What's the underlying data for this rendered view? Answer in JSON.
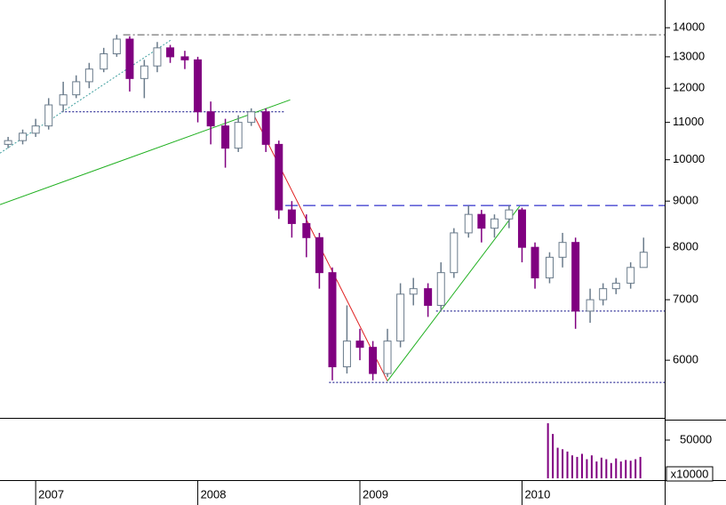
{
  "chart_data": [
    {
      "type": "candlestick",
      "log_scale": true,
      "xlim": [
        2006.78,
        2010.88
      ],
      "xticks": [
        2007,
        2008,
        2009,
        2010
      ],
      "ylim": [
        5180,
        15025
      ],
      "yticks": [
        6000,
        7000,
        8000,
        9000,
        10000,
        11000,
        12000,
        13000,
        14000
      ],
      "up_color": "#6a7b8b",
      "down_color": "#800080",
      "x": [
        2006.83,
        2006.92,
        2007.0,
        2007.08,
        2007.17,
        2007.25,
        2007.33,
        2007.42,
        2007.5,
        2007.58,
        2007.67,
        2007.75,
        2007.83,
        2007.92,
        2008.0,
        2008.08,
        2008.17,
        2008.25,
        2008.33,
        2008.42,
        2008.5,
        2008.58,
        2008.67,
        2008.75,
        2008.83,
        2008.92,
        2009.0,
        2009.08,
        2009.17,
        2009.25,
        2009.33,
        2009.42,
        2009.5,
        2009.58,
        2009.67,
        2009.75,
        2009.83,
        2009.92,
        2010.0,
        2010.08,
        2010.17,
        2010.25,
        2010.33,
        2010.42,
        2010.5,
        2010.58,
        2010.67,
        2010.75
      ],
      "open": [
        10400,
        10500,
        10700,
        10900,
        11500,
        11800,
        12200,
        12600,
        13100,
        13600,
        12300,
        12700,
        13300,
        13000,
        12900,
        11300,
        10900,
        10300,
        11000,
        11300,
        10400,
        8800,
        8500,
        8200,
        7500,
        5900,
        6300,
        6200,
        5800,
        6300,
        7100,
        7200,
        6900,
        7500,
        8300,
        8700,
        8400,
        8600,
        8800,
        8000,
        7400,
        7800,
        8100,
        6800,
        7000,
        7200,
        7300,
        7600
      ],
      "high": [
        10600,
        10800,
        11100,
        11700,
        12200,
        12400,
        12800,
        13300,
        13750,
        13700,
        12900,
        13500,
        13400,
        13200,
        13000,
        11600,
        11100,
        11200,
        11400,
        11400,
        10500,
        9000,
        8700,
        8300,
        7600,
        6900,
        6500,
        6300,
        6500,
        7300,
        7400,
        7300,
        7700,
        8400,
        8900,
        8800,
        8700,
        8900,
        8850,
        8100,
        7900,
        8300,
        8200,
        7200,
        7300,
        7400,
        7700,
        8200
      ],
      "low": [
        10300,
        10400,
        10600,
        10800,
        11300,
        11700,
        12000,
        12500,
        13000,
        11900,
        11700,
        12500,
        12800,
        12600,
        11000,
        10400,
        9800,
        10200,
        10900,
        10200,
        8600,
        8200,
        7800,
        7200,
        5700,
        5800,
        6000,
        5700,
        5750,
        6200,
        6900,
        6700,
        6800,
        7400,
        8200,
        8100,
        8200,
        8400,
        7700,
        7200,
        7300,
        7600,
        6500,
        6600,
        6900,
        7100,
        7200,
        7600
      ],
      "close": [
        10500,
        10700,
        10900,
        11500,
        11800,
        12200,
        12600,
        13100,
        13600,
        12300,
        12700,
        13300,
        13000,
        12900,
        11300,
        10900,
        10300,
        11000,
        11300,
        10400,
        8800,
        8500,
        8200,
        7500,
        5900,
        6300,
        6200,
        5800,
        6300,
        7100,
        7200,
        6900,
        7500,
        8300,
        8700,
        8400,
        8600,
        8800,
        8000,
        7400,
        7800,
        8100,
        6800,
        7000,
        7200,
        7300,
        7600,
        7900
      ],
      "lines": [
        {
          "x": [
            2007.54,
            2010.88
          ],
          "y": [
            13750,
            13750
          ],
          "color": "#555555",
          "style": "dashdot"
        },
        {
          "x": [
            2007.16,
            2008.54
          ],
          "y": [
            11300,
            11300
          ],
          "color": "#000080",
          "style": "dotted"
        },
        {
          "x": [
            2008.54,
            2010.88
          ],
          "y": [
            8900,
            8900
          ],
          "color": "#0000c0",
          "style": "dashed"
        },
        {
          "x": [
            2009.47,
            2010.88
          ],
          "y": [
            6800,
            6800
          ],
          "color": "#000080",
          "style": "dotted"
        },
        {
          "x": [
            2008.81,
            2010.88
          ],
          "y": [
            5670,
            5670
          ],
          "color": "#000080",
          "style": "dotted"
        },
        {
          "x": [
            2006.78,
            2008.57
          ],
          "y": [
            8920,
            11650
          ],
          "color": "#20b020",
          "style": "solid"
        },
        {
          "x": [
            2008.34,
            2009.17
          ],
          "y": [
            11260,
            5690
          ],
          "color": "#e02020",
          "style": "solid"
        },
        {
          "x": [
            2009.17,
            2009.985
          ],
          "y": [
            5690,
            8880
          ],
          "color": "#20b020",
          "style": "solid"
        },
        {
          "x": [
            2006.78,
            2007.84
          ],
          "y": [
            10170,
            13590
          ],
          "color": "#40a0a0",
          "style": "dotted"
        }
      ]
    },
    {
      "type": "bar",
      "unit_label": "x10000",
      "color": "#800080",
      "xlim": [
        2006.78,
        2010.88
      ],
      "ylim": [
        0,
        76700
      ],
      "yticks": [
        50000
      ],
      "x": [
        2010.16,
        2010.19,
        2010.22,
        2010.25,
        2010.28,
        2010.31,
        2010.34,
        2010.37,
        2010.4,
        2010.43,
        2010.46,
        2010.49,
        2010.52,
        2010.55,
        2010.58,
        2010.61,
        2010.64,
        2010.67,
        2010.7,
        2010.73
      ],
      "values": [
        72000,
        58000,
        40000,
        38000,
        35000,
        30000,
        28000,
        32000,
        25000,
        30000,
        22000,
        27000,
        25000,
        20000,
        26000,
        22000,
        24000,
        23000,
        25000,
        28000
      ]
    }
  ]
}
